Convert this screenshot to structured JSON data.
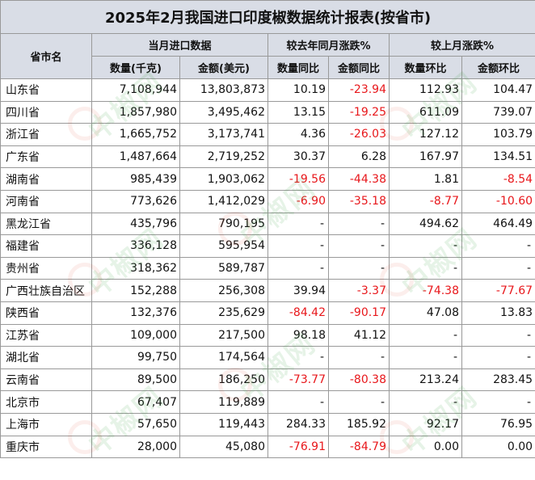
{
  "title": "2025年2月我国进口印度椒数据统计报表(按省市)",
  "headers": {
    "province": "省市名",
    "group_current": "当月进口数据",
    "group_yoy": "较去年同月涨跌%",
    "group_mom": "较上月涨跌%",
    "qty": "数量(千克)",
    "amount": "金额(美元)",
    "qty_yoy": "数量同比",
    "amount_yoy": "金额同比",
    "qty_mom": "数量环比",
    "amount_mom": "金额环比"
  },
  "rows": [
    [
      "山东省",
      "7,108,944",
      "13,803,873",
      "10.19",
      "-23.94",
      "112.93",
      "104.47"
    ],
    [
      "四川省",
      "1,857,980",
      "3,495,462",
      "13.15",
      "-19.25",
      "611.09",
      "739.07"
    ],
    [
      "浙江省",
      "1,665,752",
      "3,173,741",
      "4.36",
      "-26.03",
      "127.12",
      "103.79"
    ],
    [
      "广东省",
      "1,487,664",
      "2,719,252",
      "30.37",
      "6.28",
      "167.97",
      "134.51"
    ],
    [
      "湖南省",
      "985,439",
      "1,903,062",
      "-19.56",
      "-44.38",
      "1.81",
      "-8.54"
    ],
    [
      "河南省",
      "773,626",
      "1,412,029",
      "-6.90",
      "-35.18",
      "-8.77",
      "-10.60"
    ],
    [
      "黑龙江省",
      "435,796",
      "790,195",
      "-",
      "-",
      "494.62",
      "464.49"
    ],
    [
      "福建省",
      "336,128",
      "595,954",
      "-",
      "-",
      "-",
      "-"
    ],
    [
      "贵州省",
      "318,362",
      "589,787",
      "-",
      "-",
      "-",
      "-"
    ],
    [
      "广西壮族自治区",
      "152,288",
      "256,308",
      "39.94",
      "-3.37",
      "-74.38",
      "-77.67"
    ],
    [
      "陕西省",
      "132,376",
      "235,629",
      "-84.42",
      "-90.17",
      "47.08",
      "13.83"
    ],
    [
      "江苏省",
      "109,000",
      "217,500",
      "98.18",
      "41.12",
      "-",
      "-"
    ],
    [
      "湖北省",
      "99,750",
      "174,564",
      "-",
      "-",
      "-",
      "-"
    ],
    [
      "云南省",
      "89,500",
      "186,250",
      "-73.77",
      "-80.38",
      "213.24",
      "283.45"
    ],
    [
      "北京市",
      "67,407",
      "119,889",
      "-",
      "-",
      "-",
      "-"
    ],
    [
      "上海市",
      "57,650",
      "119,443",
      "284.33",
      "185.92",
      "92.17",
      "76.95"
    ],
    [
      "重庆市",
      "28,000",
      "45,080",
      "-76.91",
      "-84.79",
      "0.00",
      "0.00"
    ]
  ],
  "watermark": "中椒网",
  "colors": {
    "header_bg": "#d9dde6",
    "negative": "#e8171b",
    "border": "#999999",
    "watermark": "#4baa55"
  }
}
